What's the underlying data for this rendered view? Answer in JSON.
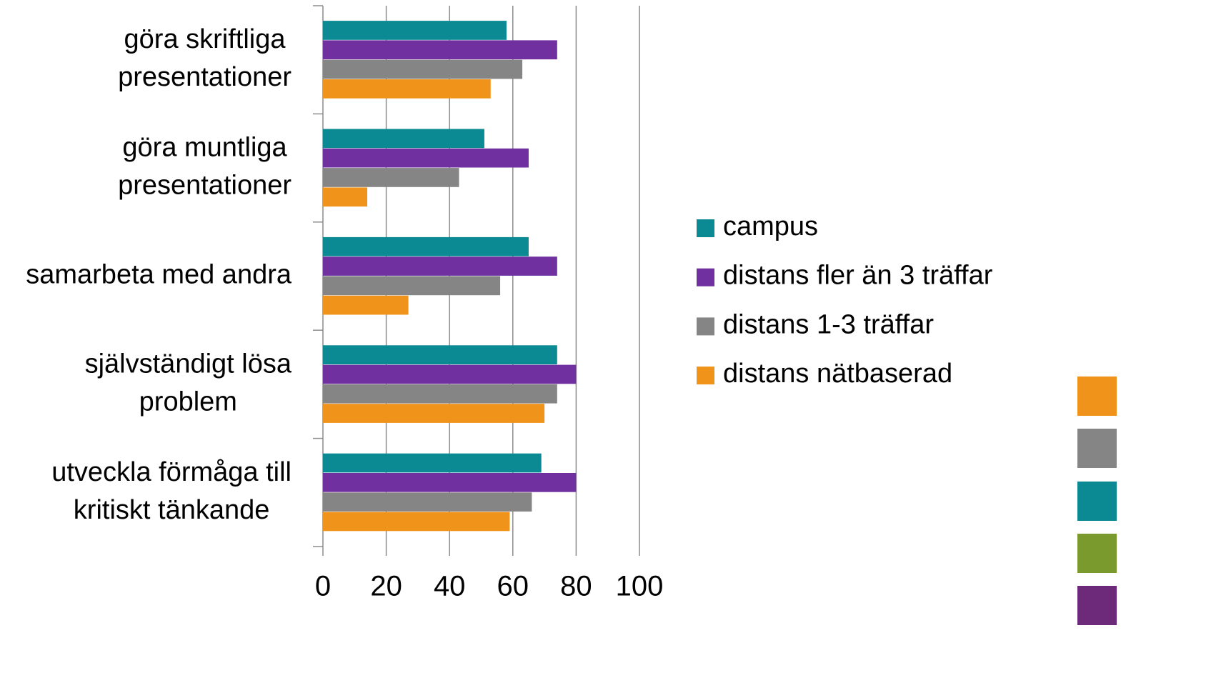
{
  "chart_data": {
    "type": "barh",
    "categories": [
      [
        "göra skriftliga",
        "presentationer"
      ],
      [
        "göra muntliga",
        "presentationer"
      ],
      [
        "samarbeta med andra"
      ],
      [
        "självständigt lösa",
        "problem"
      ],
      [
        "utveckla förmåga till",
        "kritiskt tänkande"
      ]
    ],
    "series": [
      {
        "name": "campus",
        "color": "#0b8a94",
        "values": [
          58,
          51,
          65,
          74,
          69
        ]
      },
      {
        "name": "distans fler än 3 träffar",
        "color": "#7030a0",
        "values": [
          74,
          65,
          74,
          80,
          80
        ]
      },
      {
        "name": "distans 1-3 träffar",
        "color": "#858585",
        "values": [
          63,
          43,
          56,
          74,
          66
        ]
      },
      {
        "name": "distans nätbaserad",
        "color": "#f0931a",
        "values": [
          53,
          14,
          27,
          70,
          59
        ]
      }
    ],
    "xlim": [
      0,
      100
    ],
    "xticks": [
      0,
      20,
      40,
      60,
      80,
      100
    ],
    "grid": true,
    "legend": "right"
  }
}
